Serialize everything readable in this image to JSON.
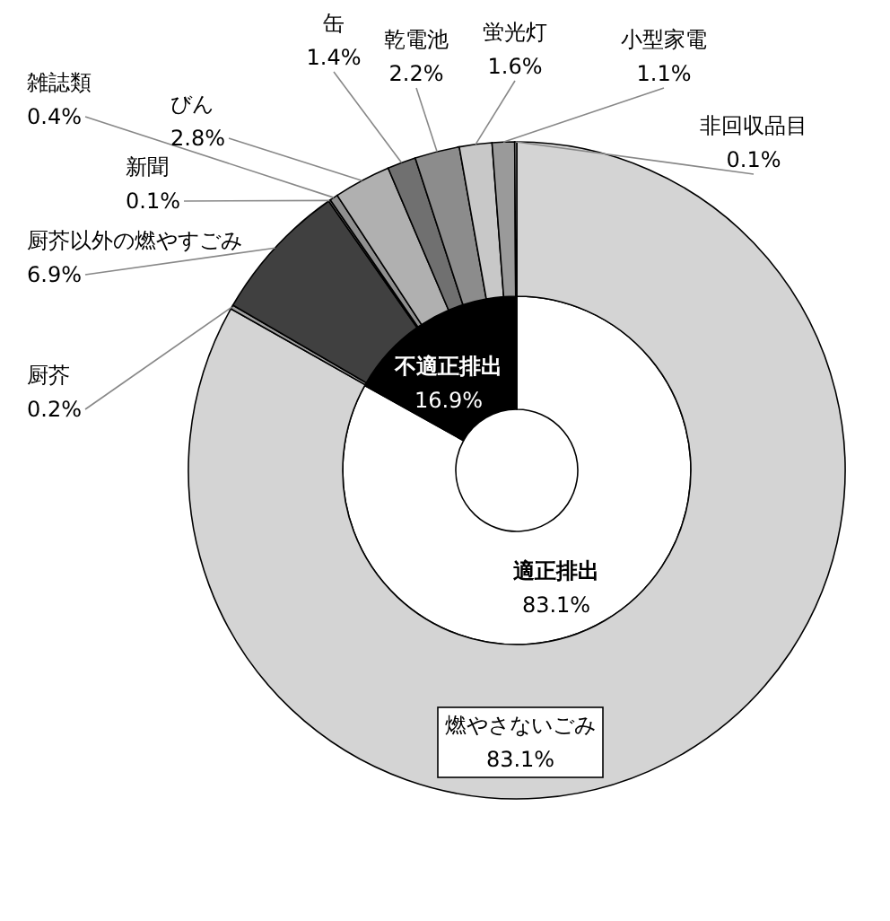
{
  "chart_data": [
    {
      "type": "donut",
      "categories": [
        "適正排出",
        "不適正排出"
      ],
      "values": [
        83.1,
        16.9
      ],
      "colors": [
        "#ffffff",
        "#000000"
      ],
      "value_labels": [
        "83.1%",
        "16.9%"
      ]
    },
    {
      "type": "donut",
      "categories": [
        "燃やさないごみ",
        "厨芥",
        "厨芥以外の燃やすごみ",
        "新聞",
        "雑誌類",
        "びん",
        "缶",
        "乾電池",
        "蛍光灯",
        "小型家電",
        "非回収品目"
      ],
      "values": [
        83.1,
        0.2,
        6.9,
        0.1,
        0.4,
        2.8,
        1.4,
        2.2,
        1.6,
        1.1,
        0.1
      ],
      "colors": [
        "#d4d4d4",
        "#a0a0a0",
        "#404040",
        "#808080",
        "#909090",
        "#b0b0b0",
        "#707070",
        "#8c8c8c",
        "#c8c8c8",
        "#9a9a9a",
        "#bcbcbc"
      ],
      "value_labels": [
        "83.1%",
        "0.2%",
        "6.9%",
        "0.1%",
        "0.4%",
        "2.8%",
        "1.4%",
        "2.2%",
        "1.6%",
        "1.1%",
        "0.1%"
      ]
    }
  ]
}
